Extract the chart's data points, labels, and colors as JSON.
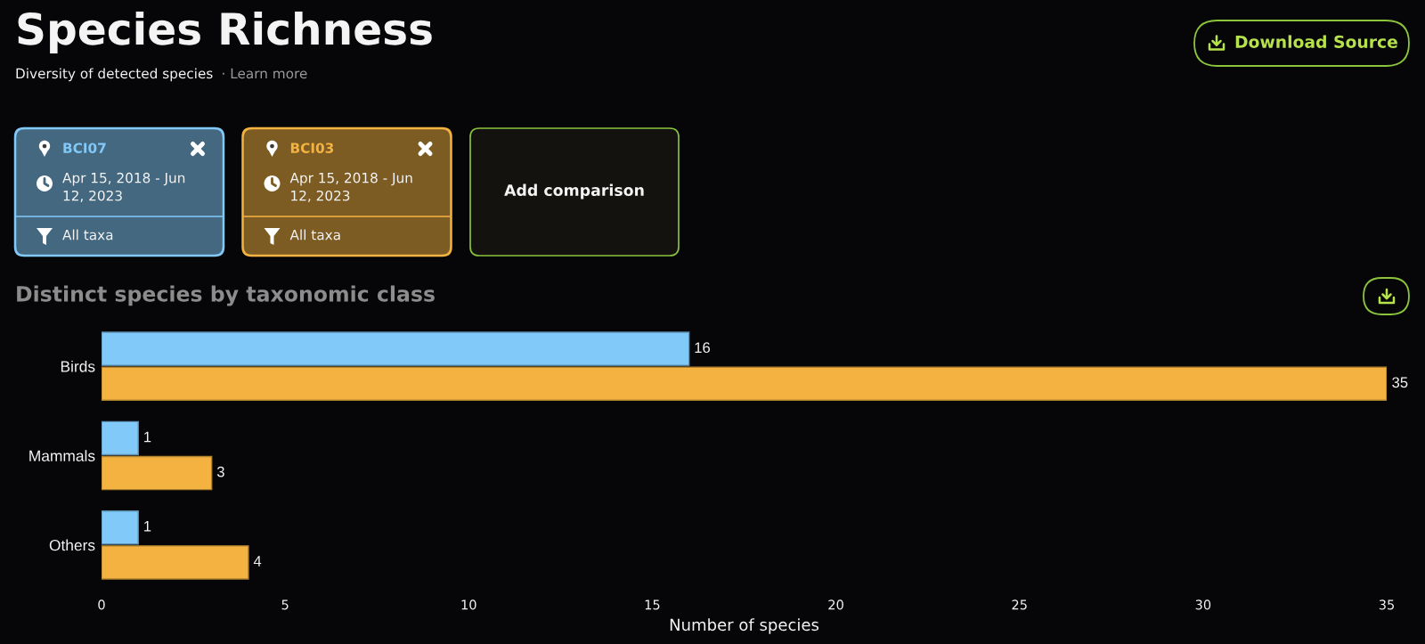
{
  "chart_data": {
    "type": "bar",
    "orientation": "horizontal",
    "title": "Species Richness",
    "subtitle": "Diversity of detected species",
    "categories": [
      "Birds",
      "Mammals",
      "Others"
    ],
    "series": [
      {
        "name": "BCI07",
        "color": "#81c9f9",
        "values": [
          16,
          1,
          1
        ]
      },
      {
        "name": "BCI03",
        "color": "#f4b340",
        "values": [
          35,
          3,
          4
        ]
      }
    ],
    "xlabel": "Number of species",
    "xlim": [
      0,
      35
    ],
    "xticks": [
      0,
      5,
      10,
      15,
      20,
      25,
      30,
      35
    ],
    "data_labels": true,
    "legend": "top left",
    "annotations": [
      "· Learn more",
      "Apr 15, 2018 - Jun 12, 2023",
      "All taxa",
      "Apr 15, 2018 - Jun 12, 2023",
      "All taxa",
      "Add comparison",
      "Download Source",
      "Distinct species by taxonomic class"
    ]
  }
}
